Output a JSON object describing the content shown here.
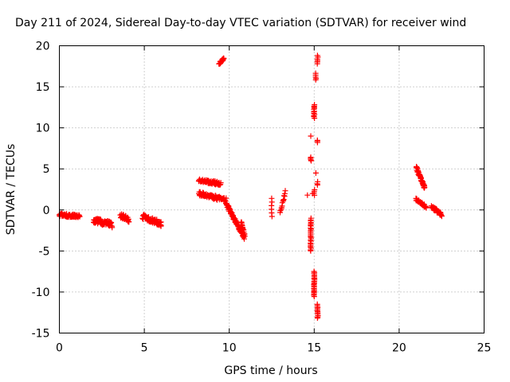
{
  "chart_data": {
    "type": "scatter",
    "title": "Day 211 of 2024, Sidereal Day-to-day VTEC variation (SDTVAR) for receiver wind",
    "xlabel": "GPS time / hours",
    "ylabel": "SDTVAR / TECUs",
    "xlim": [
      0,
      25
    ],
    "ylim": [
      -15,
      20
    ],
    "xticks": [
      0,
      5,
      10,
      15,
      20,
      25
    ],
    "yticks": [
      -15,
      -10,
      -5,
      0,
      5,
      10,
      15,
      20
    ],
    "grid": true,
    "marker": "+",
    "color": "#ff0000",
    "series": [
      {
        "name": "SDTVAR",
        "segments": [
          {
            "x": [
              0.0,
              1.2
            ],
            "y": [
              -0.6,
              -0.8
            ],
            "spread": 0.4,
            "n": 70
          },
          {
            "x": [
              2.0,
              3.1
            ],
            "y": [
              -1.2,
              -1.8
            ],
            "spread": 0.7,
            "n": 70
          },
          {
            "x": [
              3.6,
              4.1
            ],
            "y": [
              -0.7,
              -1.2
            ],
            "spread": 0.6,
            "n": 35
          },
          {
            "x": [
              4.9,
              6.0
            ],
            "y": [
              -0.8,
              -1.7
            ],
            "spread": 0.6,
            "n": 70
          },
          {
            "x": [
              8.2,
              9.8
            ],
            "y": [
              2.0,
              1.2
            ],
            "spread": 0.5,
            "n": 80
          },
          {
            "x": [
              8.2,
              9.5
            ],
            "y": [
              3.6,
              3.2
            ],
            "spread": 0.4,
            "n": 60
          },
          {
            "x": [
              9.8,
              10.9
            ],
            "y": [
              0.8,
              -3.4
            ],
            "spread": 0.4,
            "n": 80
          },
          {
            "x": [
              10.7,
              10.9
            ],
            "y": [
              -1.5,
              -3.0
            ],
            "spread": 0.3,
            "n": 15
          },
          {
            "x": [
              9.4,
              9.7
            ],
            "y": [
              17.8,
              18.5
            ],
            "spread": 0.2,
            "n": 20
          },
          {
            "x": [
              12.5,
              12.5
            ],
            "y": [
              -0.8,
              1.4
            ],
            "spread": 0.0,
            "n": 6
          },
          {
            "x": [
              13.0,
              13.3
            ],
            "y": [
              -0.4,
              2.2
            ],
            "spread": 0.3,
            "n": 14
          },
          {
            "x": [
              14.8,
              14.8
            ],
            "y": [
              -5.0,
              -1.0
            ],
            "spread": 0.1,
            "n": 25
          },
          {
            "x": [
              14.8,
              14.8
            ],
            "y": [
              6.0,
              6.4
            ],
            "spread": 0.1,
            "n": 4
          },
          {
            "x": [
              15.0,
              15.0
            ],
            "y": [
              11.2,
              12.8
            ],
            "spread": 0.1,
            "n": 12
          },
          {
            "x": [
              15.0,
              15.0
            ],
            "y": [
              -10.5,
              -7.5
            ],
            "spread": 0.1,
            "n": 25
          },
          {
            "x": [
              15.0,
              15.0
            ],
            "y": [
              1.8,
              2.5
            ],
            "spread": 0.1,
            "n": 4
          },
          {
            "x": [
              15.1,
              15.1
            ],
            "y": [
              15.8,
              16.6
            ],
            "spread": 0.1,
            "n": 5
          },
          {
            "x": [
              15.2,
              15.2
            ],
            "y": [
              17.8,
              18.8
            ],
            "spread": 0.1,
            "n": 6
          },
          {
            "x": [
              15.2,
              15.2
            ],
            "y": [
              -13.2,
              -11.5
            ],
            "spread": 0.1,
            "n": 12
          },
          {
            "x": [
              15.2,
              15.2
            ],
            "y": [
              8.2,
              8.5
            ],
            "spread": 0.1,
            "n": 3
          },
          {
            "x": [
              15.2,
              15.2
            ],
            "y": [
              3.0,
              3.4
            ],
            "spread": 0.1,
            "n": 3
          },
          {
            "x": [
              21.0,
              21.5
            ],
            "y": [
              5.2,
              2.7
            ],
            "spread": 0.4,
            "n": 50
          },
          {
            "x": [
              21.0,
              21.6
            ],
            "y": [
              1.3,
              0.3
            ],
            "spread": 0.3,
            "n": 35
          },
          {
            "x": [
              21.9,
              22.5
            ],
            "y": [
              0.4,
              -0.6
            ],
            "spread": 0.4,
            "n": 40
          }
        ],
        "points": [
          [
            14.8,
            9.0
          ],
          [
            15.1,
            4.5
          ],
          [
            14.6,
            1.8
          ],
          [
            14.9,
            2.0
          ]
        ]
      }
    ]
  }
}
